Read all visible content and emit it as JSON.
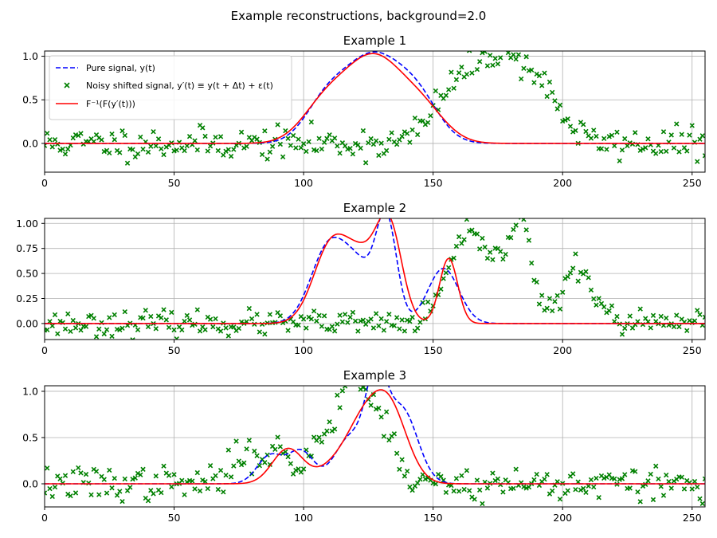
{
  "figure": {
    "suptitle": "Example reconstructions, background=2.0"
  },
  "legend": {
    "items": [
      {
        "label": "Pure signal, y(t)",
        "style": "dashed",
        "color": "#0000ff"
      },
      {
        "label": "Noisy shifted signal, y′(t) ≡ y(t + Δt) + ε(t)",
        "style": "marker-x",
        "color": "#008000"
      },
      {
        "label": "F⁻¹(F(y′(t)))",
        "style": "solid",
        "color": "#ff0000"
      }
    ],
    "placement": "upper-left"
  },
  "colors": {
    "pure": "#0000ff",
    "noisy": "#008000",
    "reconstruction": "#ff0000",
    "grid": "#b0b0b0"
  },
  "chart_data": [
    {
      "type": "line",
      "title": "Example 1",
      "xlim": [
        0,
        255
      ],
      "ylim": [
        -0.33,
        1.06
      ],
      "xticks": [
        0,
        50,
        100,
        150,
        200,
        250
      ],
      "yticks": [
        0.0,
        0.5,
        1.0
      ],
      "ytick_labels": [
        "0.0",
        "0.5",
        "1.0"
      ],
      "grid": true,
      "legend": true,
      "series": [
        {
          "name": "Pure signal, y(t)",
          "style": "dashed",
          "components": [
            {
              "amp": 1.0,
              "center": 127,
              "sigma": 12
            },
            {
              "amp": 0.35,
              "center": 108,
              "sigma": 8
            },
            {
              "amp": 0.35,
              "center": 145,
              "sigma": 8
            }
          ]
        },
        {
          "name": "Noisy shifted signal, y′(t) ≡ y(t + Δt) + ε(t)",
          "style": "marker-x",
          "shift": 48,
          "noise": 0.09,
          "seed": 11
        },
        {
          "name": "F⁻¹(F(y′(t)))",
          "style": "solid",
          "components": [
            {
              "amp": 0.95,
              "center": 127,
              "sigma": 11
            },
            {
              "amp": 0.4,
              "center": 108,
              "sigma": 9
            },
            {
              "amp": 0.35,
              "center": 146,
              "sigma": 9
            }
          ]
        }
      ]
    },
    {
      "type": "line",
      "title": "Example 2",
      "xlim": [
        0,
        255
      ],
      "ylim": [
        -0.16,
        1.05
      ],
      "xticks": [
        0,
        50,
        100,
        150,
        200,
        250
      ],
      "yticks": [
        0.0,
        0.25,
        0.5,
        0.75,
        1.0
      ],
      "ytick_labels": [
        "0.00",
        "0.25",
        "0.50",
        "0.75",
        "1.00"
      ],
      "grid": true,
      "legend": false,
      "series": [
        {
          "name": "Pure signal, y(t)",
          "style": "dashed",
          "components": [
            {
              "amp": 0.78,
              "center": 110,
              "sigma": 7
            },
            {
              "amp": 0.45,
              "center": 122,
              "sigma": 6
            },
            {
              "amp": 1.0,
              "center": 132,
              "sigma": 4
            },
            {
              "amp": 0.55,
              "center": 154,
              "sigma": 6
            }
          ]
        },
        {
          "name": "Noisy shifted signal, y′(t) ≡ y(t + Δt) + ε(t)",
          "style": "marker-x",
          "shift": 52,
          "noise": 0.06,
          "seed": 23
        },
        {
          "name": "F⁻¹(F(y′(t)))",
          "style": "solid",
          "components": [
            {
              "amp": 0.8,
              "center": 111,
              "sigma": 7
            },
            {
              "amp": 0.5,
              "center": 123,
              "sigma": 6
            },
            {
              "amp": 0.95,
              "center": 133,
              "sigma": 5
            },
            {
              "amp": 0.65,
              "center": 156,
              "sigma": 3.5
            }
          ]
        }
      ]
    },
    {
      "type": "line",
      "title": "Example 3",
      "xlim": [
        0,
        255
      ],
      "ylim": [
        -0.25,
        1.06
      ],
      "xticks": [
        0,
        50,
        100,
        150,
        200,
        250
      ],
      "yticks": [
        0.0,
        0.5,
        1.0
      ],
      "ytick_labels": [
        "0.0",
        "0.5",
        "1.0"
      ],
      "grid": true,
      "legend": false,
      "series": [
        {
          "name": "Pure signal, y(t)",
          "style": "dashed",
          "components": [
            {
              "amp": 0.3,
              "center": 87,
              "sigma": 5
            },
            {
              "amp": 0.35,
              "center": 99,
              "sigma": 5
            },
            {
              "amp": 0.5,
              "center": 118,
              "sigma": 6
            },
            {
              "amp": 1.0,
              "center": 128,
              "sigma": 4
            },
            {
              "amp": 0.8,
              "center": 138,
              "sigma": 6
            }
          ]
        },
        {
          "name": "Noisy shifted signal, y′(t) ≡ y(t + Δt) + ε(t)",
          "style": "marker-x",
          "shift": -10,
          "noise": 0.09,
          "seed": 37
        },
        {
          "name": "F⁻¹(F(y′(t)))",
          "style": "solid",
          "components": [
            {
              "amp": 0.38,
              "center": 94,
              "sigma": 6
            },
            {
              "amp": 0.12,
              "center": 110,
              "sigma": 6
            },
            {
              "amp": 0.55,
              "center": 122,
              "sigma": 7
            },
            {
              "amp": 0.8,
              "center": 133,
              "sigma": 7
            }
          ]
        }
      ]
    }
  ]
}
